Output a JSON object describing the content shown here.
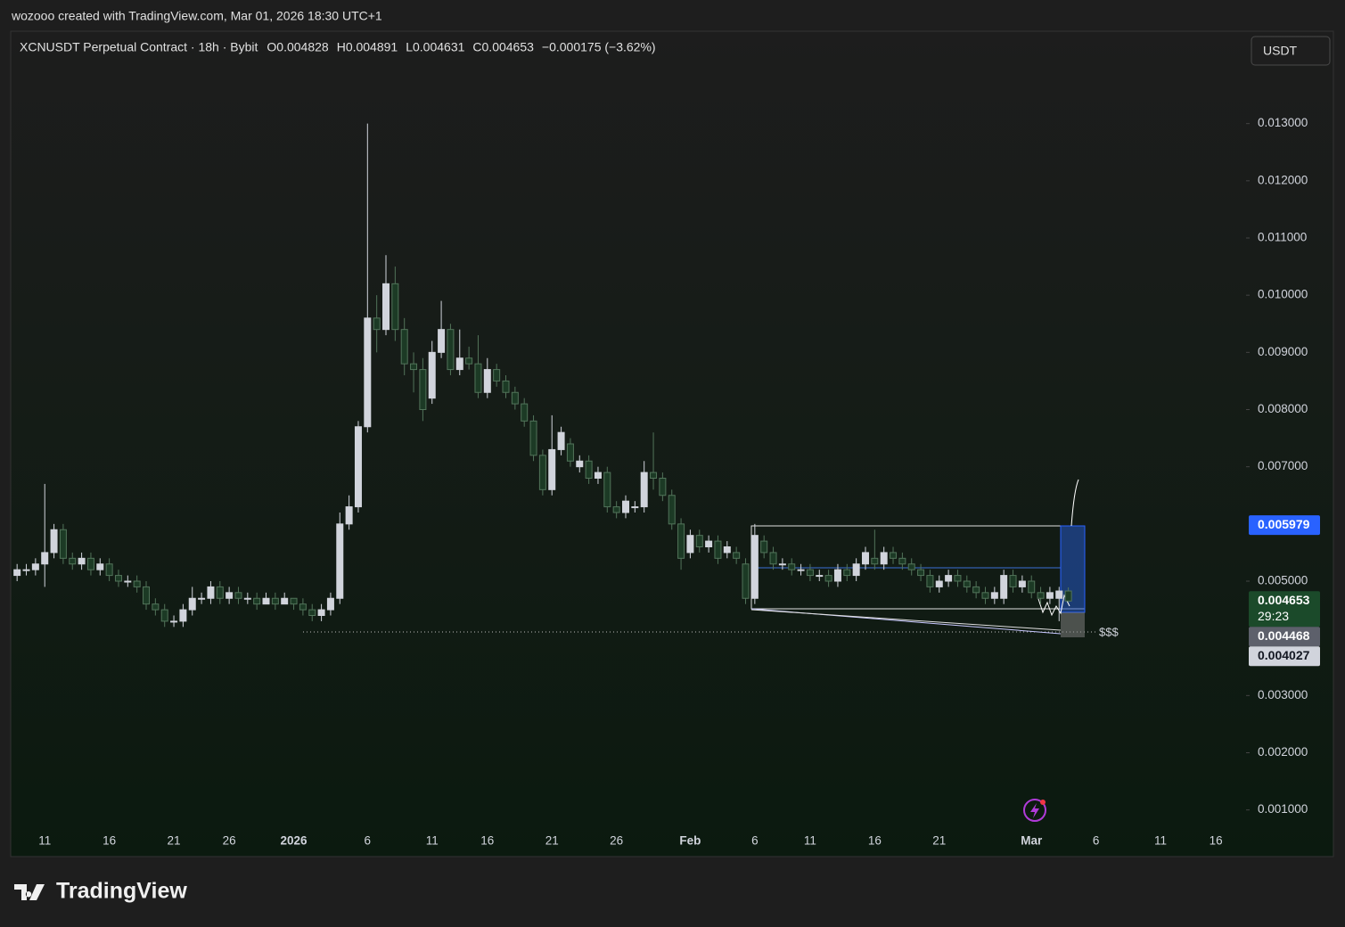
{
  "header": {
    "credit": "wozooo created with TradingView.com, Mar 01, 2026 18:30 UTC+1"
  },
  "chart_data": {
    "type": "candlestick",
    "symbol": "XCNUSDT Perpetual Contract · 18h · Bybit",
    "ohlc_legend": [
      "O0.004828",
      "H0.004891",
      "L0.004631",
      "C0.004653",
      "−0.000175 (−3.62%)"
    ],
    "currency": "USDT",
    "categories": [
      null,
      null,
      null,
      "11",
      null,
      null,
      null,
      null,
      null,
      null,
      "16",
      null,
      null,
      null,
      null,
      null,
      null,
      "21",
      null,
      null,
      null,
      null,
      null,
      "26",
      null,
      null,
      null,
      null,
      null,
      null,
      "2026",
      null,
      null,
      null,
      null,
      null,
      null,
      null,
      "6",
      null,
      null,
      null,
      null,
      null,
      null,
      "11",
      null,
      null,
      null,
      null,
      null,
      "16",
      null,
      null,
      null,
      null,
      null,
      null,
      "21",
      null,
      null,
      null,
      null,
      null,
      null,
      "26",
      null,
      null,
      null,
      null,
      null,
      null,
      null,
      "Feb",
      null,
      null,
      null,
      null,
      null,
      null,
      "6",
      null,
      null,
      null,
      null,
      null,
      "11",
      null,
      null,
      null,
      null,
      null,
      null,
      "16",
      null,
      null,
      null,
      null,
      null,
      null,
      "21",
      null,
      null,
      null,
      null,
      null,
      null,
      null,
      null,
      null,
      "Mar",
      null,
      null,
      null,
      null,
      null,
      null,
      "6",
      null,
      null,
      null,
      null,
      null,
      null,
      "11",
      null,
      null,
      null,
      null,
      null,
      "16",
      null,
      null
    ],
    "open": [
      0.0051,
      0.0052,
      0.0052,
      0.0053,
      0.0055,
      0.0059,
      0.0054,
      0.0053,
      0.0054,
      0.0052,
      0.0053,
      0.0051,
      0.005,
      0.005,
      0.0049,
      0.0046,
      0.0045,
      0.0043,
      0.0043,
      0.0045,
      0.0047,
      0.0047,
      0.0049,
      0.0047,
      0.0048,
      0.0047,
      0.0047,
      0.0046,
      0.0047,
      0.0046,
      0.0047,
      0.0046,
      0.0045,
      0.0044,
      0.0045,
      0.0047,
      0.006,
      0.0063,
      0.0077,
      0.0096,
      0.0094,
      0.0102,
      0.0094,
      0.0088,
      0.0087,
      0.0082,
      0.009,
      0.0094,
      0.0087,
      0.0089,
      0.0088,
      0.0083,
      0.0087,
      0.0085,
      0.0083,
      0.0081,
      0.0078,
      0.0072,
      0.0066,
      0.0073,
      0.0074,
      0.007,
      0.0071,
      0.0068,
      0.0069,
      0.0063,
      0.0062,
      0.0063,
      0.0063,
      0.0069,
      0.0068,
      0.0065,
      0.006,
      0.0055,
      0.0058,
      0.0056,
      0.0057,
      0.0055,
      0.0055,
      0.0053,
      0.0047,
      0.0057,
      0.0055,
      0.0053,
      0.0053,
      0.0052,
      0.0052,
      0.0051,
      0.0051,
      0.005,
      0.0052,
      0.0051,
      0.0053,
      0.0054,
      0.0053,
      0.0055,
      0.0054,
      0.0053,
      0.0052,
      0.0051,
      0.0049,
      0.005,
      0.0051,
      0.005,
      0.0049,
      0.0048,
      0.0047,
      0.0047,
      0.0051,
      0.0049,
      0.005,
      0.0048,
      0.0047,
      0.0047,
      0.004828,
      null,
      null,
      null,
      null,
      null,
      null,
      null,
      null,
      null,
      null,
      null,
      null,
      null,
      null,
      null,
      null,
      null,
      null
    ],
    "high": [
      0.0053,
      0.0053,
      0.0054,
      0.0067,
      0.006,
      0.006,
      0.0055,
      0.0055,
      0.0055,
      0.0054,
      0.0054,
      0.0052,
      0.0051,
      0.0051,
      0.005,
      0.0047,
      0.0046,
      0.0044,
      0.0046,
      0.0049,
      0.0048,
      0.005,
      0.005,
      0.0049,
      0.0049,
      0.0048,
      0.0048,
      0.0048,
      0.0048,
      0.0048,
      0.0047,
      0.0047,
      0.0046,
      0.0046,
      0.0048,
      0.0062,
      0.0065,
      0.0078,
      0.013,
      0.01,
      0.0107,
      0.0105,
      0.0096,
      0.009,
      0.0089,
      0.0092,
      0.0099,
      0.0095,
      0.0094,
      0.0091,
      0.0093,
      0.0089,
      0.0088,
      0.0086,
      0.0084,
      0.0082,
      0.0079,
      0.0073,
      0.0079,
      0.0077,
      0.0075,
      0.0072,
      0.0072,
      0.007,
      0.007,
      0.0064,
      0.0065,
      0.0064,
      0.0071,
      0.0076,
      0.0069,
      0.0066,
      0.0061,
      0.0059,
      0.0059,
      0.0058,
      0.0058,
      0.0057,
      0.0056,
      0.0054,
      0.006,
      0.0058,
      0.0056,
      0.0054,
      0.0054,
      0.0053,
      0.0053,
      0.0052,
      0.0052,
      0.0053,
      0.0053,
      0.0054,
      0.0056,
      0.0059,
      0.0056,
      0.0056,
      0.0055,
      0.0054,
      0.0053,
      0.0052,
      0.0051,
      0.0052,
      0.0052,
      0.0051,
      0.005,
      0.0049,
      0.0049,
      0.0052,
      0.0052,
      0.0051,
      0.0051,
      0.0049,
      0.0049,
      0.0049,
      0.004891,
      null,
      null,
      null,
      null,
      null,
      null,
      null,
      null,
      null,
      null,
      null,
      null,
      null,
      null,
      null,
      null,
      null,
      null
    ],
    "low": [
      0.005,
      0.0051,
      0.0051,
      0.0049,
      0.0054,
      0.0053,
      0.0052,
      0.0052,
      0.0051,
      0.0051,
      0.005,
      0.0049,
      0.0049,
      0.0048,
      0.0045,
      0.0044,
      0.0042,
      0.0042,
      0.0042,
      0.0044,
      0.0046,
      0.0046,
      0.0046,
      0.0046,
      0.0046,
      0.0046,
      0.0045,
      0.0046,
      0.0045,
      0.0046,
      0.0045,
      0.0044,
      0.0043,
      0.0043,
      0.0044,
      0.0046,
      0.0059,
      0.0062,
      0.0076,
      0.009,
      0.0093,
      0.0092,
      0.0086,
      0.0083,
      0.0078,
      0.0081,
      0.0089,
      0.0086,
      0.0086,
      0.0087,
      0.0082,
      0.0082,
      0.0084,
      0.0082,
      0.008,
      0.0077,
      0.0071,
      0.0065,
      0.0065,
      0.0072,
      0.007,
      0.0069,
      0.0067,
      0.0067,
      0.0062,
      0.0061,
      0.0061,
      0.0062,
      0.0062,
      0.0066,
      0.0064,
      0.0059,
      0.0052,
      0.0054,
      0.0055,
      0.0055,
      0.0053,
      0.0054,
      0.0053,
      0.0046,
      0.0046,
      0.0054,
      0.0052,
      0.0052,
      0.0051,
      0.0051,
      0.005,
      0.005,
      0.0049,
      0.0049,
      0.005,
      0.005,
      0.0052,
      0.0052,
      0.0052,
      0.0053,
      0.0052,
      0.0051,
      0.005,
      0.0048,
      0.0048,
      0.0049,
      0.0049,
      0.0048,
      0.0047,
      0.0046,
      0.0046,
      0.0046,
      0.0048,
      0.0048,
      0.0047,
      0.0046,
      0.0046,
      0.0043,
      0.004631,
      null,
      null,
      null,
      null,
      null,
      null,
      null,
      null,
      null,
      null,
      null,
      null,
      null,
      null,
      null,
      null,
      null,
      null
    ],
    "close": [
      0.0052,
      0.0052,
      0.0053,
      0.0055,
      0.0059,
      0.0054,
      0.0053,
      0.0054,
      0.0052,
      0.0053,
      0.0051,
      0.005,
      0.005,
      0.0049,
      0.0046,
      0.0045,
      0.0043,
      0.0043,
      0.0045,
      0.0047,
      0.0047,
      0.0049,
      0.0047,
      0.0048,
      0.0047,
      0.0047,
      0.0046,
      0.0047,
      0.0046,
      0.0047,
      0.0046,
      0.0045,
      0.0044,
      0.0045,
      0.0047,
      0.006,
      0.0063,
      0.0077,
      0.0096,
      0.0094,
      0.0102,
      0.0094,
      0.0088,
      0.0087,
      0.008,
      0.009,
      0.0094,
      0.0087,
      0.0089,
      0.0088,
      0.0083,
      0.0087,
      0.0085,
      0.0083,
      0.0081,
      0.0078,
      0.0072,
      0.0066,
      0.0073,
      0.0076,
      0.0071,
      0.0071,
      0.0068,
      0.0069,
      0.0063,
      0.0062,
      0.0064,
      0.0063,
      0.0069,
      0.0068,
      0.0065,
      0.006,
      0.0054,
      0.0058,
      0.0056,
      0.0057,
      0.0054,
      0.0056,
      0.0054,
      0.0047,
      0.0058,
      0.0055,
      0.0053,
      0.0053,
      0.0052,
      0.0052,
      0.0051,
      0.0051,
      0.005,
      0.0052,
      0.0051,
      0.0053,
      0.0055,
      0.0053,
      0.0055,
      0.0054,
      0.0053,
      0.0052,
      0.0051,
      0.0049,
      0.005,
      0.0051,
      0.005,
      0.0049,
      0.0048,
      0.0047,
      0.0048,
      0.0051,
      0.0049,
      0.005,
      0.0048,
      0.0047,
      0.0048,
      0.004828,
      0.004653,
      null,
      null,
      null,
      null,
      null,
      null,
      null,
      null,
      null,
      null,
      null,
      null,
      null,
      null,
      null,
      null,
      null,
      null
    ],
    "ylim": [
      0.0002,
      0.0146
    ],
    "yticks": [
      {
        "value": 0.001,
        "label": "0.001000"
      },
      {
        "value": 0.002,
        "label": "0.002000"
      },
      {
        "value": 0.003,
        "label": "0.003000"
      },
      {
        "value": 0.005,
        "label": "0.005000"
      },
      {
        "value": 0.007,
        "label": "0.007000"
      },
      {
        "value": 0.008,
        "label": "0.008000"
      },
      {
        "value": 0.009,
        "label": "0.009000"
      },
      {
        "value": 0.01,
        "label": "0.010000"
      },
      {
        "value": 0.011,
        "label": "0.011000"
      },
      {
        "value": 0.012,
        "label": "0.012000"
      },
      {
        "value": 0.013,
        "label": "0.013000"
      }
    ],
    "up_color": "#d1d4dc",
    "down_color": "#1c3a25",
    "down_border": "#52745a",
    "price_labels": [
      {
        "value": 0.005979,
        "label": "0.005979",
        "color": "#2962ff",
        "text_color": "#ffffff"
      },
      {
        "value": 0.004653,
        "label": "0.004653",
        "countdown": "29:23",
        "color": "#1b4a2a",
        "text_color": "#ffffff"
      },
      {
        "value": 0.004468,
        "label": "0.004468",
        "color": "#5d606b",
        "text_color": "#ffffff"
      },
      {
        "value": 0.004027,
        "label": "0.004027",
        "color": "#d1d4dc",
        "text_color": "#131722"
      }
    ],
    "annotation": "$$$"
  },
  "footer": {
    "brand": "TradingView"
  }
}
